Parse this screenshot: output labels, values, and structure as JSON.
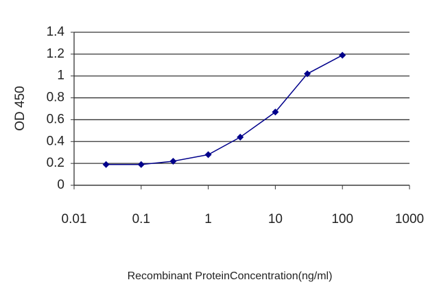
{
  "chart_data": {
    "type": "line",
    "xlabel": "Recombinant ProteinConcentration(ng/ml)",
    "ylabel": "OD 450",
    "x": [
      0.03,
      0.1,
      0.3,
      1,
      3,
      10,
      30,
      100
    ],
    "series": [
      {
        "name": "OD 450",
        "color": "#00008b",
        "values": [
          0.19,
          0.19,
          0.22,
          0.28,
          0.44,
          0.67,
          1.02,
          1.19
        ]
      }
    ],
    "xscale": "log",
    "xlim": [
      0.01,
      1000
    ],
    "xticks": [
      0.01,
      0.1,
      1,
      10,
      100,
      1000
    ],
    "ylim": [
      0,
      1.4
    ],
    "yticks": [
      0,
      0.2,
      0.4,
      0.6,
      0.8,
      1,
      1.2,
      1.4
    ],
    "grid": true
  }
}
